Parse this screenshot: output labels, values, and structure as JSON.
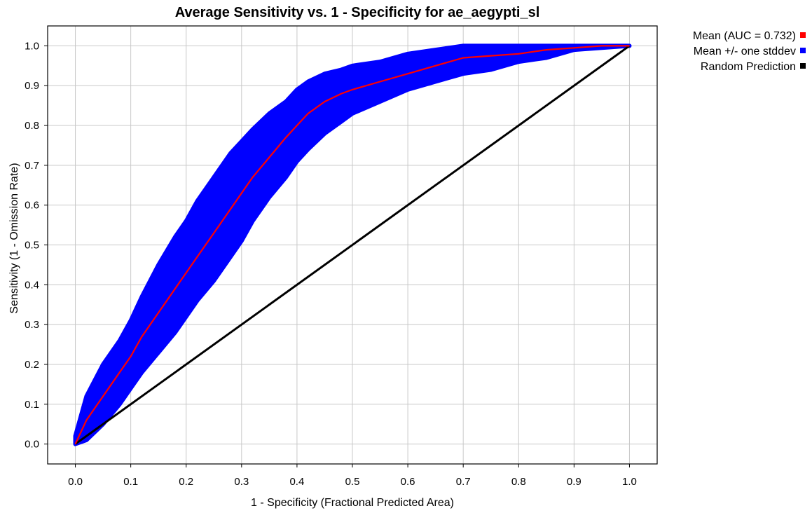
{
  "chart_data": {
    "type": "line",
    "title": "Average Sensitivity vs. 1 - Specificity for ae_aegypti_sl",
    "xlabel": "1 - Specificity (Fractional Predicted Area)",
    "ylabel": "Sensitivity (1 - Omission Rate)",
    "xlim": [
      -0.05,
      1.05
    ],
    "ylim": [
      -0.05,
      1.05
    ],
    "grid": true,
    "legend_position": "top-right, outside plot",
    "x_ticks": [
      "0.0",
      "0.1",
      "0.2",
      "0.3",
      "0.4",
      "0.5",
      "0.6",
      "0.7",
      "0.8",
      "0.9",
      "1.0"
    ],
    "y_ticks": [
      "0.0",
      "0.1",
      "0.2",
      "0.3",
      "0.4",
      "0.5",
      "0.6",
      "0.7",
      "0.8",
      "0.9",
      "1.0"
    ],
    "series": [
      {
        "name": "Mean (AUC = 0.732)",
        "color": "#ff0000",
        "x": [
          0.0,
          0.02,
          0.05,
          0.08,
          0.1,
          0.12,
          0.15,
          0.18,
          0.2,
          0.22,
          0.25,
          0.28,
          0.3,
          0.32,
          0.35,
          0.38,
          0.4,
          0.42,
          0.45,
          0.48,
          0.5,
          0.55,
          0.6,
          0.65,
          0.7,
          0.75,
          0.8,
          0.85,
          0.9,
          0.95,
          1.0
        ],
        "y": [
          0.0,
          0.06,
          0.12,
          0.18,
          0.22,
          0.27,
          0.33,
          0.39,
          0.43,
          0.47,
          0.53,
          0.59,
          0.63,
          0.67,
          0.72,
          0.77,
          0.8,
          0.83,
          0.86,
          0.88,
          0.89,
          0.91,
          0.93,
          0.95,
          0.97,
          0.975,
          0.98,
          0.99,
          0.995,
          1.0,
          1.0
        ]
      },
      {
        "name": "Mean +/- one stddev",
        "color": "#0000ff",
        "x": [
          0.0,
          0.02,
          0.05,
          0.08,
          0.1,
          0.12,
          0.15,
          0.18,
          0.2,
          0.22,
          0.25,
          0.28,
          0.3,
          0.32,
          0.35,
          0.38,
          0.4,
          0.42,
          0.45,
          0.48,
          0.5,
          0.55,
          0.6,
          0.65,
          0.7,
          0.75,
          0.8,
          0.85,
          0.9,
          0.95,
          1.0
        ],
        "upper": [
          0.02,
          0.12,
          0.2,
          0.26,
          0.31,
          0.37,
          0.45,
          0.52,
          0.56,
          0.61,
          0.67,
          0.73,
          0.76,
          0.79,
          0.83,
          0.86,
          0.89,
          0.91,
          0.93,
          0.94,
          0.95,
          0.96,
          0.98,
          0.99,
          1.0,
          1.0,
          1.0,
          1.0,
          1.0,
          1.0,
          1.0
        ],
        "lower": [
          0.0,
          0.01,
          0.05,
          0.1,
          0.14,
          0.18,
          0.23,
          0.28,
          0.32,
          0.36,
          0.41,
          0.47,
          0.51,
          0.56,
          0.62,
          0.67,
          0.71,
          0.74,
          0.78,
          0.81,
          0.83,
          0.86,
          0.89,
          0.91,
          0.93,
          0.94,
          0.96,
          0.97,
          0.99,
          0.995,
          1.0
        ]
      },
      {
        "name": "Random Prediction",
        "color": "#000000",
        "x": [
          0.0,
          1.0
        ],
        "y": [
          0.0,
          1.0
        ]
      }
    ]
  }
}
